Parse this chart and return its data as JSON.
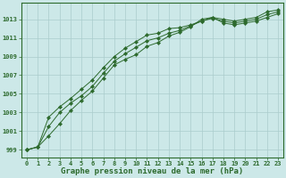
{
  "x": [
    0,
    1,
    2,
    3,
    4,
    5,
    6,
    7,
    8,
    9,
    10,
    11,
    12,
    13,
    14,
    15,
    16,
    17,
    18,
    19,
    20,
    21,
    22,
    23
  ],
  "line1": [
    999.0,
    999.3,
    1000.5,
    1001.8,
    1003.2,
    1004.3,
    1005.3,
    1006.7,
    1008.1,
    1008.7,
    1009.2,
    1010.1,
    1010.5,
    1011.2,
    1011.6,
    1012.2,
    1013.0,
    1013.2,
    1013.0,
    1012.8,
    1013.0,
    1013.2,
    1013.8,
    1014.0
  ],
  "line2": [
    999.0,
    999.3,
    1001.5,
    1003.0,
    1004.0,
    1004.8,
    1005.8,
    1007.2,
    1008.5,
    1009.3,
    1010.0,
    1010.7,
    1011.0,
    1011.5,
    1011.8,
    1012.3,
    1012.8,
    1013.1,
    1012.8,
    1012.6,
    1012.8,
    1013.0,
    1013.5,
    1013.8
  ],
  "line3": [
    999.0,
    999.3,
    1002.5,
    1003.6,
    1004.5,
    1005.5,
    1006.5,
    1007.8,
    1009.0,
    1009.9,
    1010.6,
    1011.3,
    1011.5,
    1012.0,
    1012.1,
    1012.4,
    1012.8,
    1013.2,
    1012.6,
    1012.4,
    1012.6,
    1012.8,
    1013.2,
    1013.6
  ],
  "line_color": "#2d6a2d",
  "bg_color": "#cce8e8",
  "grid_color": "#aacccc",
  "axis_color": "#2d6a2d",
  "label_color": "#2d6a2d",
  "ylabel_ticks": [
    999,
    1001,
    1003,
    1005,
    1007,
    1009,
    1011,
    1013
  ],
  "xlabel": "Graphe pression niveau de la mer (hPa)",
  "xlim": [
    -0.5,
    23.5
  ],
  "ylim": [
    998.2,
    1014.8
  ],
  "tick_fontsize": 5.0,
  "xlabel_fontsize": 6.5
}
